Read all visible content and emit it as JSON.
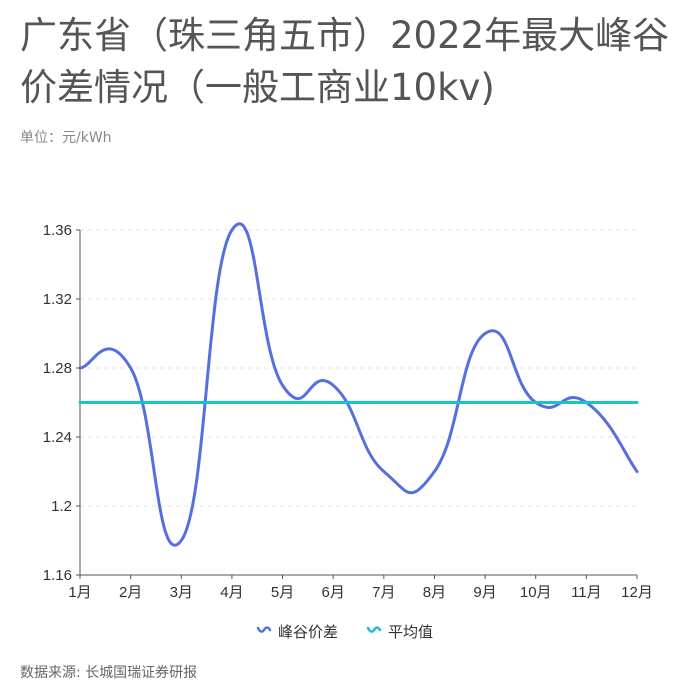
{
  "header": {
    "title": "广东省（珠三角五市）2022年最大峰谷价差情况（一般工商业10kv)",
    "unit": "单位：元/kWh"
  },
  "footer": {
    "source": "数据来源: 长城国瑞证券研报"
  },
  "chart_data": {
    "type": "line",
    "title": "广东省（珠三角五市）2022年最大峰谷价差情况（一般工商业10kv)",
    "ylabel": "单位：元/kWh",
    "categories": [
      "1月",
      "2月",
      "3月",
      "4月",
      "5月",
      "6月",
      "7月",
      "8月",
      "9月",
      "10月",
      "11月",
      "12月"
    ],
    "y_ticks": [
      "1.16",
      "1.2",
      "1.24",
      "1.28",
      "1.32",
      "1.36"
    ],
    "ylim": [
      1.16,
      1.36
    ],
    "grid": true,
    "legend_position": "bottom",
    "series": [
      {
        "name": "峰谷价差",
        "color": "#5470e0",
        "smooth": true,
        "values": [
          1.28,
          1.28,
          1.18,
          1.36,
          1.27,
          1.27,
          1.22,
          1.22,
          1.3,
          1.26,
          1.26,
          1.22
        ]
      },
      {
        "name": "平均值",
        "color": "#17c3ce",
        "smooth": false,
        "values": [
          1.26,
          1.26,
          1.26,
          1.26,
          1.26,
          1.26,
          1.26,
          1.26,
          1.26,
          1.26,
          1.26,
          1.26
        ]
      }
    ]
  }
}
